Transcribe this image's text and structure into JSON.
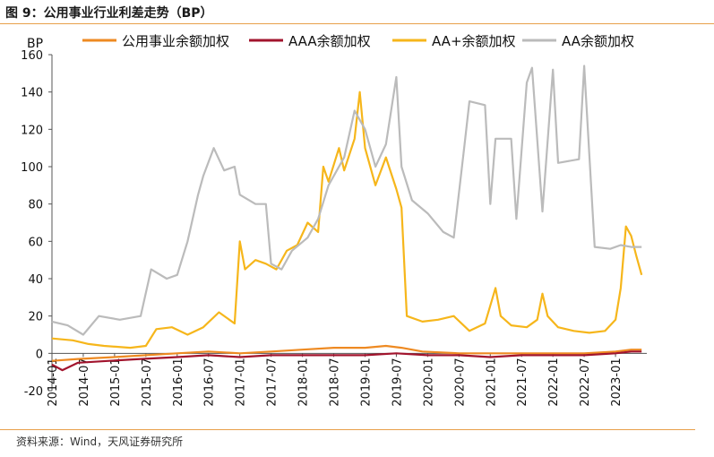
{
  "figure_title": "图 9：公用事业行业利差走势（BP）",
  "source": "资料来源：Wind，天风证券研究所",
  "chart_data": {
    "type": "line",
    "ylabel": "BP",
    "ylim": [
      -20,
      160
    ],
    "yticks": [
      -20,
      0,
      20,
      40,
      60,
      80,
      100,
      120,
      140,
      160
    ],
    "xlim": [
      "2014-01",
      "2023-07"
    ],
    "xticks": [
      "2014-01",
      "2014-07",
      "2015-01",
      "2015-07",
      "2016-01",
      "2016-07",
      "2017-01",
      "2017-07",
      "2018-01",
      "2018-07",
      "2019-01",
      "2019-07",
      "2020-01",
      "2020-07",
      "2021-01",
      "2021-07",
      "2022-01",
      "2022-07",
      "2023-01"
    ],
    "grid": false,
    "legend": "top",
    "series": [
      {
        "name": "公用事业余额加权",
        "color": "#ee8a22",
        "points": [
          [
            "2014-01",
            -4
          ],
          [
            "2014-06",
            -3
          ],
          [
            "2015-01",
            -2
          ],
          [
            "2015-07",
            -1
          ],
          [
            "2016-01",
            0
          ],
          [
            "2016-07",
            1
          ],
          [
            "2017-01",
            0
          ],
          [
            "2017-07",
            1
          ],
          [
            "2018-01",
            2
          ],
          [
            "2018-07",
            3
          ],
          [
            "2019-01",
            3
          ],
          [
            "2019-05",
            4
          ],
          [
            "2019-08",
            3
          ],
          [
            "2019-12",
            1
          ],
          [
            "2020-07",
            0
          ],
          [
            "2021-01",
            0
          ],
          [
            "2021-07",
            0
          ],
          [
            "2022-01",
            0
          ],
          [
            "2022-07",
            0
          ],
          [
            "2023-01",
            1
          ],
          [
            "2023-04",
            2
          ],
          [
            "2023-06",
            2
          ]
        ]
      },
      {
        "name": "AAA余额加权",
        "color": "#a2142d",
        "points": [
          [
            "2014-01",
            -6
          ],
          [
            "2014-03",
            -9
          ],
          [
            "2014-06",
            -5
          ],
          [
            "2014-12",
            -4
          ],
          [
            "2015-06",
            -3
          ],
          [
            "2016-01",
            -2
          ],
          [
            "2016-07",
            -1
          ],
          [
            "2017-01",
            -2
          ],
          [
            "2017-07",
            -1
          ],
          [
            "2018-01",
            -1
          ],
          [
            "2018-07",
            -1
          ],
          [
            "2019-01",
            -1
          ],
          [
            "2019-07",
            0
          ],
          [
            "2020-01",
            -1
          ],
          [
            "2020-07",
            -1
          ],
          [
            "2021-01",
            -2
          ],
          [
            "2021-07",
            -1
          ],
          [
            "2022-01",
            -1
          ],
          [
            "2022-07",
            -1
          ],
          [
            "2023-01",
            0
          ],
          [
            "2023-04",
            1
          ],
          [
            "2023-06",
            1
          ]
        ]
      },
      {
        "name": "AA+余额加权",
        "color": "#f6b61b",
        "points": [
          [
            "2014-01",
            8
          ],
          [
            "2014-05",
            7
          ],
          [
            "2014-08",
            5
          ],
          [
            "2014-11",
            4
          ],
          [
            "2015-04",
            3
          ],
          [
            "2015-07",
            4
          ],
          [
            "2015-09",
            13
          ],
          [
            "2015-12",
            14
          ],
          [
            "2016-03",
            10
          ],
          [
            "2016-06",
            14
          ],
          [
            "2016-09",
            22
          ],
          [
            "2016-12",
            16
          ],
          [
            "2017-01",
            60
          ],
          [
            "2017-02",
            45
          ],
          [
            "2017-04",
            50
          ],
          [
            "2017-06",
            48
          ],
          [
            "2017-08",
            45
          ],
          [
            "2017-10",
            55
          ],
          [
            "2017-12",
            58
          ],
          [
            "2018-02",
            70
          ],
          [
            "2018-04",
            65
          ],
          [
            "2018-05",
            100
          ],
          [
            "2018-06",
            92
          ],
          [
            "2018-08",
            110
          ],
          [
            "2018-09",
            98
          ],
          [
            "2018-11",
            115
          ],
          [
            "2018-12",
            140
          ],
          [
            "2019-01",
            110
          ],
          [
            "2019-03",
            90
          ],
          [
            "2019-05",
            105
          ],
          [
            "2019-07",
            88
          ],
          [
            "2019-08",
            78
          ],
          [
            "2019-09",
            20
          ],
          [
            "2019-12",
            17
          ],
          [
            "2020-03",
            18
          ],
          [
            "2020-06",
            20
          ],
          [
            "2020-09",
            12
          ],
          [
            "2020-12",
            16
          ],
          [
            "2021-02",
            35
          ],
          [
            "2021-03",
            20
          ],
          [
            "2021-05",
            15
          ],
          [
            "2021-08",
            14
          ],
          [
            "2021-10",
            18
          ],
          [
            "2021-11",
            32
          ],
          [
            "2021-12",
            20
          ],
          [
            "2022-02",
            14
          ],
          [
            "2022-05",
            12
          ],
          [
            "2022-08",
            11
          ],
          [
            "2022-11",
            12
          ],
          [
            "2023-01",
            18
          ],
          [
            "2023-02",
            35
          ],
          [
            "2023-03",
            68
          ],
          [
            "2023-04",
            63
          ],
          [
            "2023-05",
            52
          ],
          [
            "2023-06",
            42
          ]
        ]
      },
      {
        "name": "AA余额加权",
        "color": "#bbbbbb",
        "points": [
          [
            "2014-01",
            17
          ],
          [
            "2014-04",
            15
          ],
          [
            "2014-07",
            10
          ],
          [
            "2014-10",
            20
          ],
          [
            "2015-02",
            18
          ],
          [
            "2015-06",
            20
          ],
          [
            "2015-08",
            45
          ],
          [
            "2015-11",
            40
          ],
          [
            "2016-01",
            42
          ],
          [
            "2016-03",
            60
          ],
          [
            "2016-05",
            85
          ],
          [
            "2016-06",
            95
          ],
          [
            "2016-08",
            110
          ],
          [
            "2016-10",
            98
          ],
          [
            "2016-12",
            100
          ],
          [
            "2017-01",
            85
          ],
          [
            "2017-04",
            80
          ],
          [
            "2017-06",
            80
          ],
          [
            "2017-07",
            48
          ],
          [
            "2017-09",
            45
          ],
          [
            "2017-11",
            55
          ],
          [
            "2018-02",
            62
          ],
          [
            "2018-04",
            72
          ],
          [
            "2018-06",
            90
          ],
          [
            "2018-09",
            105
          ],
          [
            "2018-11",
            130
          ],
          [
            "2019-01",
            120
          ],
          [
            "2019-03",
            100
          ],
          [
            "2019-05",
            112
          ],
          [
            "2019-07",
            148
          ],
          [
            "2019-08",
            100
          ],
          [
            "2019-10",
            82
          ],
          [
            "2020-01",
            75
          ],
          [
            "2020-04",
            65
          ],
          [
            "2020-06",
            62
          ],
          [
            "2020-08",
            110
          ],
          [
            "2020-09",
            135
          ],
          [
            "2020-12",
            133
          ],
          [
            "2021-01",
            80
          ],
          [
            "2021-02",
            115
          ],
          [
            "2021-05",
            115
          ],
          [
            "2021-06",
            72
          ],
          [
            "2021-08",
            145
          ],
          [
            "2021-09",
            153
          ],
          [
            "2021-11",
            76
          ],
          [
            "2022-01",
            152
          ],
          [
            "2022-02",
            102
          ],
          [
            "2022-06",
            104
          ],
          [
            "2022-07",
            154
          ],
          [
            "2022-09",
            57
          ],
          [
            "2022-12",
            56
          ],
          [
            "2023-02",
            58
          ],
          [
            "2023-04",
            57
          ],
          [
            "2023-06",
            57
          ]
        ]
      }
    ]
  }
}
